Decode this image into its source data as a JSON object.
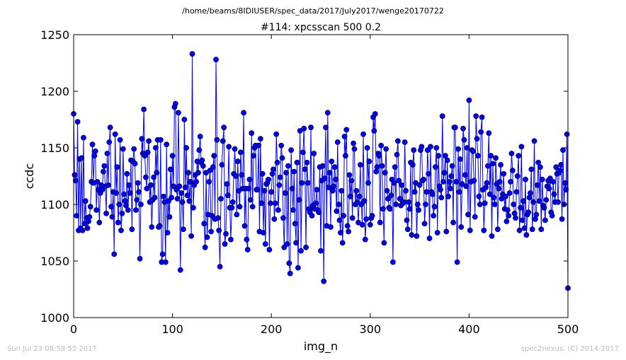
{
  "chart_data": {
    "type": "line",
    "suptitle": "/home/beams/8IDIUSER/spec_data/2017/July2017/wenge20170722",
    "title": "#114: xpcsscan 500 0.2",
    "xlabel": "img_n",
    "ylabel": "ccdc",
    "xlim": [
      0,
      500
    ],
    "ylim": [
      1000,
      1250
    ],
    "xticks": [
      0,
      100,
      200,
      300,
      400,
      500
    ],
    "yticks": [
      1000,
      1050,
      1100,
      1150,
      1200,
      1250
    ],
    "marker": "o",
    "color": "#0000ff",
    "grid": false,
    "series": [
      {
        "x_start": 0,
        "x_step": 1,
        "values": [
          1180,
          1126,
          1121,
          1090,
          1173,
          1077,
          1140,
          1079,
          1141,
          1077,
          1159,
          1083,
          1103,
          1088,
          1079,
          1085,
          1089,
          1098,
          1120,
          1153,
          1119,
          1143,
          1147,
          1095,
          1120,
          1113,
          1084,
          1110,
          1117,
          1113,
          1129,
          1134,
          1116,
          1092,
          1145,
          1117,
          1155,
          1168,
          1098,
          1089,
          1111,
          1056,
          1162,
          1110,
          1133,
          1084,
          1100,
          1157,
          1077,
          1092,
          1149,
          1109,
          1103,
          1099,
          1127,
          1095,
          1117,
          1110,
          1139,
          1078,
          1138,
          1149,
          1136,
          1095,
          1104,
          1119,
          1111,
          1052,
          1100,
          1158,
          1145,
          1184,
          1143,
          1124,
          1114,
          1146,
          1156,
          1102,
          1117,
          1080,
          1104,
          1124,
          1106,
          1150,
          1128,
          1157,
          1080,
          1081,
          1157,
          1049,
          1056,
          1107,
          1102,
          1049,
          1153,
          1075,
          1103,
          1089,
          1131,
          1106,
          1143,
          1116,
          1186,
          1189,
          1113,
          1105,
          1181,
          1116,
          1042,
          1110,
          1102,
          1078,
          1175,
          1115,
          1150,
          1108,
          1128,
          1103,
          1120,
          1072,
          1233,
          1097,
          1117,
          1126,
          1120,
          1138,
          1128,
          1148,
          1160,
          1137,
          1139,
          1134,
          1083,
          1062,
          1128,
          1071,
          1091,
          1120,
          1130,
          1076,
          1090,
          1133,
          1143,
          1087,
          1228,
          1157,
          1088,
          1077,
          1045,
          1105,
          1135,
          1156,
          1168,
          1065,
          1074,
          1118,
          1108,
          1151,
          1097,
          1069,
          1097,
          1102,
          1127,
          1149,
          1125,
          1091,
          1138,
          1112,
          1098,
          1146,
          1126,
          1114,
          1181,
          1081,
          1114,
          1069,
          1060,
          1114,
          1122,
          1104,
          1163,
          1098,
          1143,
          1150,
          1152,
          1113,
          1113,
          1152,
          1076,
          1158,
          1101,
          1127,
          1075,
          1112,
          1065,
          1118,
          1119,
          1122,
          1060,
          1101,
          1111,
          1127,
          1131,
          1087,
          1101,
          1162,
          1137,
          1095,
          1117,
          1124,
          1152,
          1141,
          1088,
          1062,
          1110,
          1128,
          1065,
          1134,
          1048,
          1039,
          1148,
          1114,
          1095,
          1129,
          1083,
          1066,
          1137,
          1044,
          1104,
          1165,
          1059,
          1119,
          1146,
          1167,
          1131,
          1062,
          1137,
          1119,
          1096,
          1093,
          1168,
          1090,
          1099,
          1145,
          1096,
          1101,
          1113,
          1095,
          1093,
          1133,
          1059,
          1121,
          1134,
          1032,
          1123,
          1168,
          1081,
          1181,
          1115,
          1128,
          1080,
          1138,
          1112,
          1116,
          1133,
          1122,
          1094,
          1155,
          1100,
          1086,
          1075,
          1112,
          1066,
          1090,
          1160,
          1143,
          1166,
          1081,
          1076,
          1126,
          1107,
          1121,
          1088,
          1154,
          1149,
          1100,
          1112,
          1102,
          1084,
          1107,
          1135,
          1100,
          1082,
          1162,
          1103,
          1069,
          1087,
          1150,
          1119,
          1138,
          1082,
          1088,
          1090,
          1177,
          1165,
          1180,
          1129,
          1133,
          1145,
          1143,
          1084,
          1152,
          1134,
          1096,
          1066,
          1128,
          1149,
          1112,
          1105,
          1097,
          1096,
          1108,
          1122,
          1049,
          1119,
          1133,
          1100,
          1144,
          1156,
          1121,
          1105,
          1099,
          1117,
          1101,
          1102,
          1155,
          1112,
          1086,
          1078,
          1102,
          1096,
          1137,
          1073,
          1135,
          1148,
          1111,
          1119,
          1072,
          1100,
          1095,
          1117,
          1148,
          1151,
          1121,
          1122,
          1083,
          1100,
          1111,
          1148,
          1127,
          1070,
          1151,
          1111,
          1109,
          1090,
          1098,
          1133,
          1150,
          1075,
          1143,
          1116,
          1113,
          1106,
          1178,
          1120,
          1128,
          1143,
          1076,
          1139,
          1107,
          1120,
          1114,
          1125,
          1134,
          1084,
          1168,
          1168,
          1120,
          1049,
          1149,
          1111,
          1140,
          1080,
          1118,
          1167,
          1157,
          1126,
          1116,
          1150,
          1091,
          1192,
          1077,
          1120,
          1148,
          1147,
          1121,
          1089,
          1178,
          1158,
          1143,
          1107,
          1100,
          1164,
          1177,
          1113,
          1077,
          1101,
          1115,
          1119,
          1134,
          1163,
          1109,
          1143,
          1072,
          1136,
          1106,
          1100,
          1141,
          1118,
          1078,
          1114,
          1120,
          1135,
          1105,
          1109,
          1127,
          1096,
          1107,
          1085,
          1095,
          1090,
          1110,
          1120,
          1145,
          1130,
          1100,
          1092,
          1088,
          1111,
          1125,
          1143,
          1077,
          1097,
          1151,
          1086,
          1103,
          1079,
          1122,
          1073,
          1091,
          1093,
          1106,
          1110,
          1131,
          1078,
          1102,
          1156,
          1087,
          1091,
          1117,
          1137,
          1103,
          1133,
          1078,
          1122,
          1099,
          1097,
          1086,
          1104,
          1116,
          1121,
          1114,
          1123,
          1093,
          1090,
          1120,
          1109,
          1102,
          1133,
          1127,
          1102,
          1128,
          1130,
          1135,
          1087,
          1148,
          1100,
          1119,
          1113,
          1162,
          1026
        ]
      }
    ]
  },
  "footer": {
    "timestamp": "Sun Jul 23 08:58:55 2017",
    "credit": "spec2nexus, (C) 2014-2017"
  }
}
